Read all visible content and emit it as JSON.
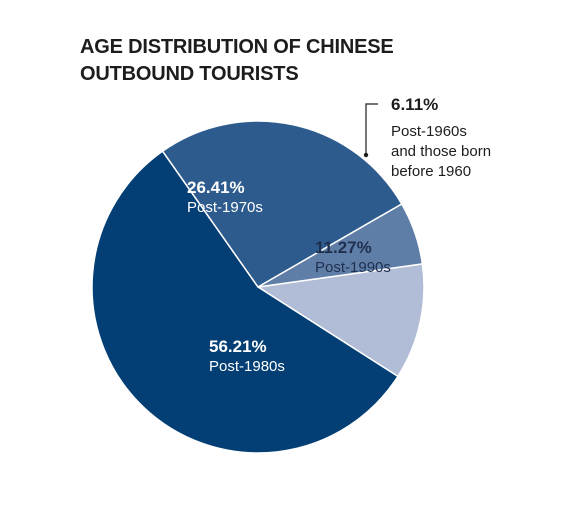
{
  "chart_data": {
    "type": "pie",
    "title_lines": [
      "AGE DISTRIBUTION OF CHINESE",
      "OUTBOUND TOURISTS"
    ],
    "slices": [
      {
        "label": "Post-1990s",
        "value": 11.27,
        "value_label": "11.27%",
        "color": "#b1bdd7",
        "text_color": "#1f2f4f"
      },
      {
        "label": "Post-1980s",
        "value": 56.21,
        "value_label": "56.21%",
        "color": "#033f74",
        "text_color": "#ffffff"
      },
      {
        "label": "Post-1970s",
        "value": 26.41,
        "value_label": "26.41%",
        "color": "#2d5b8e",
        "text_color": "#ffffff"
      },
      {
        "label_lines": [
          "Post-1960s",
          "and those born",
          "before 1960"
        ],
        "value": 6.11,
        "value_label": "6.11%",
        "color": "#5f7ea7",
        "text_color": "#1d1d1d",
        "external_label": true
      }
    ]
  }
}
